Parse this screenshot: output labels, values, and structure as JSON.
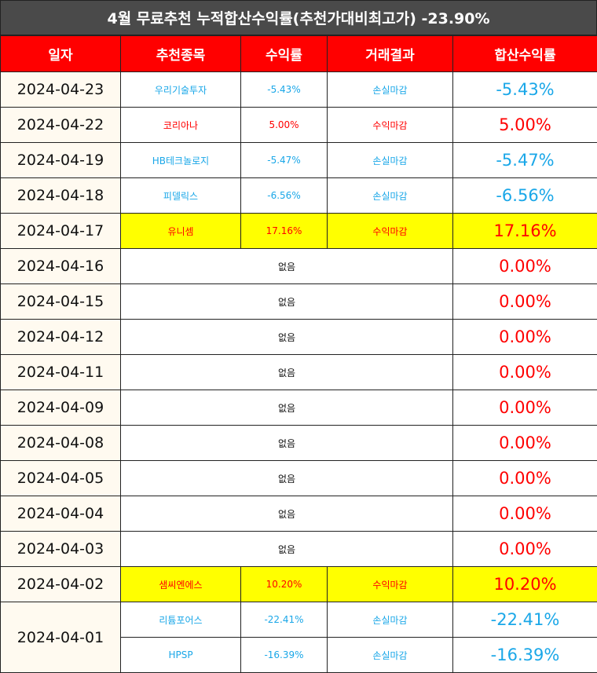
{
  "title": "4월 무료추천 누적합산수익률(추천가대비최고가) -23.90%",
  "columns": [
    "일자",
    "추천종목",
    "수익률",
    "거래결과",
    "합산수익률"
  ],
  "colors": {
    "header_bg": "#ff0000",
    "title_bg": "#4a4a4a",
    "loss": "#1aa7e8",
    "gain": "#ff0000",
    "highlight": "#ffff00"
  },
  "rows": [
    {
      "date": "2024-04-23",
      "entries": [
        {
          "stock": "우리기술투자",
          "return": "-5.43%",
          "result": "손실마감"
        }
      ],
      "total": "-5.43%",
      "tone": "loss",
      "highlight": false
    },
    {
      "date": "2024-04-22",
      "entries": [
        {
          "stock": "코리아나",
          "return": "5.00%",
          "result": "수익마감"
        }
      ],
      "total": "5.00%",
      "tone": "gain",
      "highlight": false
    },
    {
      "date": "2024-04-19",
      "entries": [
        {
          "stock": "HB테크놀로지",
          "return": "-5.47%",
          "result": "손실마감"
        }
      ],
      "total": "-5.47%",
      "tone": "loss",
      "highlight": false
    },
    {
      "date": "2024-04-18",
      "entries": [
        {
          "stock": "피델릭스",
          "return": "-6.56%",
          "result": "손실마감"
        }
      ],
      "total": "-6.56%",
      "tone": "loss",
      "highlight": false
    },
    {
      "date": "2024-04-17",
      "entries": [
        {
          "stock": "유니셈",
          "return": "17.16%",
          "result": "수익마감"
        }
      ],
      "total": "17.16%",
      "tone": "gain",
      "highlight": true
    },
    {
      "date": "2024-04-16",
      "none_text": "없음",
      "total": "0.00%",
      "tone": "gain"
    },
    {
      "date": "2024-04-15",
      "none_text": "없음",
      "total": "0.00%",
      "tone": "gain"
    },
    {
      "date": "2024-04-12",
      "none_text": "없음",
      "total": "0.00%",
      "tone": "gain"
    },
    {
      "date": "2024-04-11",
      "none_text": "없음",
      "total": "0.00%",
      "tone": "gain"
    },
    {
      "date": "2024-04-09",
      "none_text": "없음",
      "total": "0.00%",
      "tone": "gain"
    },
    {
      "date": "2024-04-08",
      "none_text": "없음",
      "total": "0.00%",
      "tone": "gain"
    },
    {
      "date": "2024-04-05",
      "none_text": "없음",
      "total": "0.00%",
      "tone": "gain"
    },
    {
      "date": "2024-04-04",
      "none_text": "없음",
      "total": "0.00%",
      "tone": "gain"
    },
    {
      "date": "2024-04-03",
      "none_text": "없음",
      "total": "0.00%",
      "tone": "gain"
    },
    {
      "date": "2024-04-02",
      "entries": [
        {
          "stock": "샘씨엔에스",
          "return": "10.20%",
          "result": "수익마감"
        }
      ],
      "total": "10.20%",
      "tone": "gain",
      "highlight": true
    },
    {
      "date": "2024-04-01",
      "entries": [
        {
          "stock": "리튬포어스",
          "return": "-22.41%",
          "result": "손실마감",
          "total": "-22.41%"
        },
        {
          "stock": "HPSP",
          "return": "-16.39%",
          "result": "손실마감",
          "total": "-16.39%"
        }
      ],
      "tone": "loss",
      "highlight": false
    }
  ]
}
